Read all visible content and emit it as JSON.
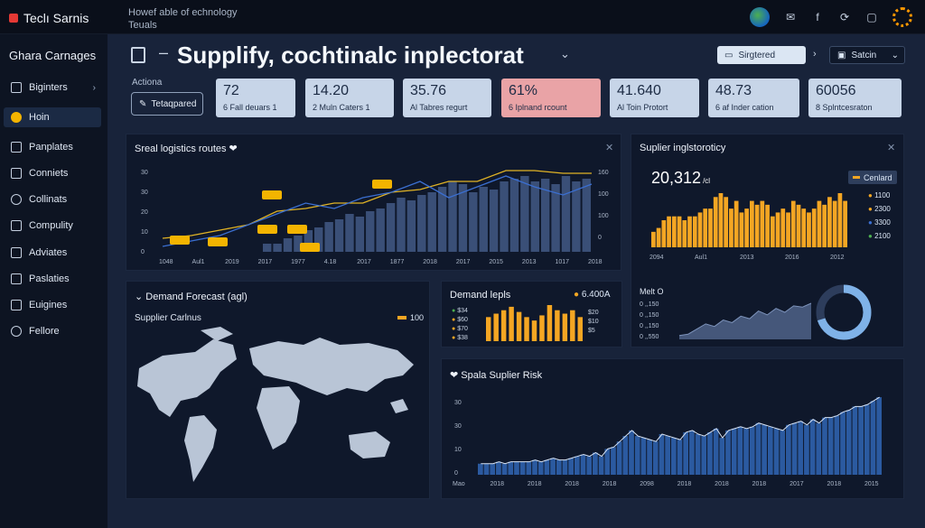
{
  "app": {
    "brand": "Teclı Sarnis",
    "tagline": [
      "Howef able of echnology",
      "Teuals"
    ]
  },
  "sidebar": {
    "title": "Ghara Carnages",
    "items": [
      {
        "label": "Biginters",
        "chevron": "›"
      },
      {
        "label": "Hoin"
      },
      {
        "label": "Panplates"
      },
      {
        "label": "Conniets"
      },
      {
        "label": "Collinats"
      },
      {
        "label": "Compulity"
      },
      {
        "label": "Adviates"
      },
      {
        "label": "Paslaties"
      },
      {
        "label": "Euigines"
      },
      {
        "label": "Fellore"
      }
    ]
  },
  "header": {
    "title": "Supplify, cochtinalc inplectorat",
    "segment_label": "Sirgtered",
    "search_label": "Satcin"
  },
  "actions": {
    "label": "Actiona",
    "button": "Tetaqpared"
  },
  "kpis": [
    {
      "value": "72",
      "label": "6 Fall deuars 1"
    },
    {
      "value": "14.20",
      "label": "2 Muln Caters 1"
    },
    {
      "value": "35.76",
      "label": "Al Tabres regurt"
    },
    {
      "value": "61%",
      "label": "6 Iplnand rcount"
    },
    {
      "value": "41.640",
      "label": "Al Toin Protort"
    },
    {
      "value": "48.73",
      "label": "6 af Inder cation"
    },
    {
      "value": "60056",
      "label": "8 Splntcesraton"
    }
  ],
  "logistics": {
    "title": "Sreal logistics routes ❤",
    "left_ticks": [
      "30",
      "30",
      "20",
      "10",
      "0"
    ],
    "right_ticks": [
      "160",
      "100",
      "100",
      "0"
    ],
    "x_labels": [
      "1048",
      "Aul1",
      "2019",
      "2017",
      "1977",
      "4.18",
      "2017",
      "1877",
      "2018",
      "2017",
      "2015",
      "2013",
      "1017",
      "2018"
    ]
  },
  "supplier_trend": {
    "title": "Suplier inglstoroticy",
    "big_value": "20,312",
    "big_unit": "/cl",
    "legend_title": "Cenlard",
    "legend": [
      "1100",
      "2300",
      "3300",
      "2100"
    ],
    "x_labels": [
      "2094",
      "Aul1",
      "2013",
      "2016",
      "2012"
    ]
  },
  "forecast": {
    "title": "Demand Forecast (agl)",
    "subtitle": "Supplier Carlnus",
    "badge": "100"
  },
  "demand": {
    "title": "Demand lepls",
    "badge": "6.400A",
    "left_legend": [
      "$34",
      "$60",
      "$70",
      "$38"
    ],
    "right_legend": [
      "$20",
      "$10",
      "$5"
    ]
  },
  "mini": {
    "title": "Melt O",
    "labels": [
      "0 ,,150",
      "0 ,,150",
      "0 ,,150",
      "0 ,,550"
    ]
  },
  "risk": {
    "title": "Spala Suplier Risk",
    "y_ticks": [
      "30",
      "30",
      "10",
      "0"
    ],
    "x_labels": [
      "Mao",
      "2018",
      "2018",
      "2018",
      "2018",
      "2098",
      "2018",
      "2018",
      "2018",
      "2017",
      "2018",
      "2015"
    ]
  },
  "colors": {
    "accent": "#f4a623",
    "blue": "#2f5fa7",
    "red_kpi": "#e9a3a6"
  },
  "chart_data": [
    {
      "type": "bar",
      "title": "Sreal logistics routes",
      "series": [
        {
          "values": [
            3,
            3,
            5,
            6,
            8,
            9,
            11,
            12,
            14,
            13,
            15,
            16,
            18,
            20,
            19,
            21,
            22,
            24,
            26,
            25,
            22,
            24,
            23,
            26,
            27,
            28,
            26,
            27,
            25,
            28,
            26,
            27
          ]
        },
        {
          "values": [
            5,
            6,
            8,
            10,
            15,
            16,
            18,
            18,
            22,
            23,
            26,
            26,
            30,
            30,
            29,
            29
          ]
        },
        {
          "values": [
            2,
            4,
            6,
            10,
            14,
            18,
            16,
            20,
            22,
            26,
            20,
            24,
            28,
            24,
            21,
            25
          ]
        }
      ]
    },
    {
      "type": "bar",
      "title": "Suplier inglstoroticy",
      "values": [
        4,
        5,
        7,
        8,
        8,
        8,
        7,
        8,
        8,
        9,
        10,
        10,
        13,
        14,
        13,
        10,
        12,
        9,
        10,
        12,
        11,
        12,
        11,
        8,
        9,
        10,
        9,
        12,
        11,
        10,
        9,
        10,
        12,
        11,
        13,
        12,
        14,
        12
      ]
    },
    {
      "type": "bar",
      "title": "Demand lepls",
      "values": [
        14,
        16,
        18,
        20,
        17,
        14,
        12,
        15,
        21,
        18,
        16,
        18,
        14
      ]
    },
    {
      "type": "area",
      "title": "Melt O",
      "values": [
        3,
        4,
        8,
        12,
        10,
        15,
        13,
        18,
        16,
        22,
        19,
        24,
        21,
        26,
        25,
        28
      ]
    },
    {
      "type": "pie",
      "values": [
        70,
        30
      ]
    },
    {
      "type": "bar",
      "title": "Spala Suplier Risk",
      "values": [
        6,
        6,
        6,
        7,
        6,
        7,
        7,
        7,
        7,
        8,
        7,
        8,
        9,
        8,
        8,
        9,
        10,
        11,
        10,
        12,
        10,
        14,
        15,
        18,
        21,
        24,
        21,
        20,
        19,
        18,
        22,
        21,
        20,
        19,
        23,
        24,
        22,
        21,
        23,
        25,
        20,
        24,
        25,
        26,
        25,
        26,
        28,
        27,
        26,
        25,
        24,
        27,
        28,
        29,
        27,
        30,
        28,
        31,
        31,
        32,
        34,
        35,
        37,
        37,
        38,
        40,
        42
      ]
    }
  ]
}
